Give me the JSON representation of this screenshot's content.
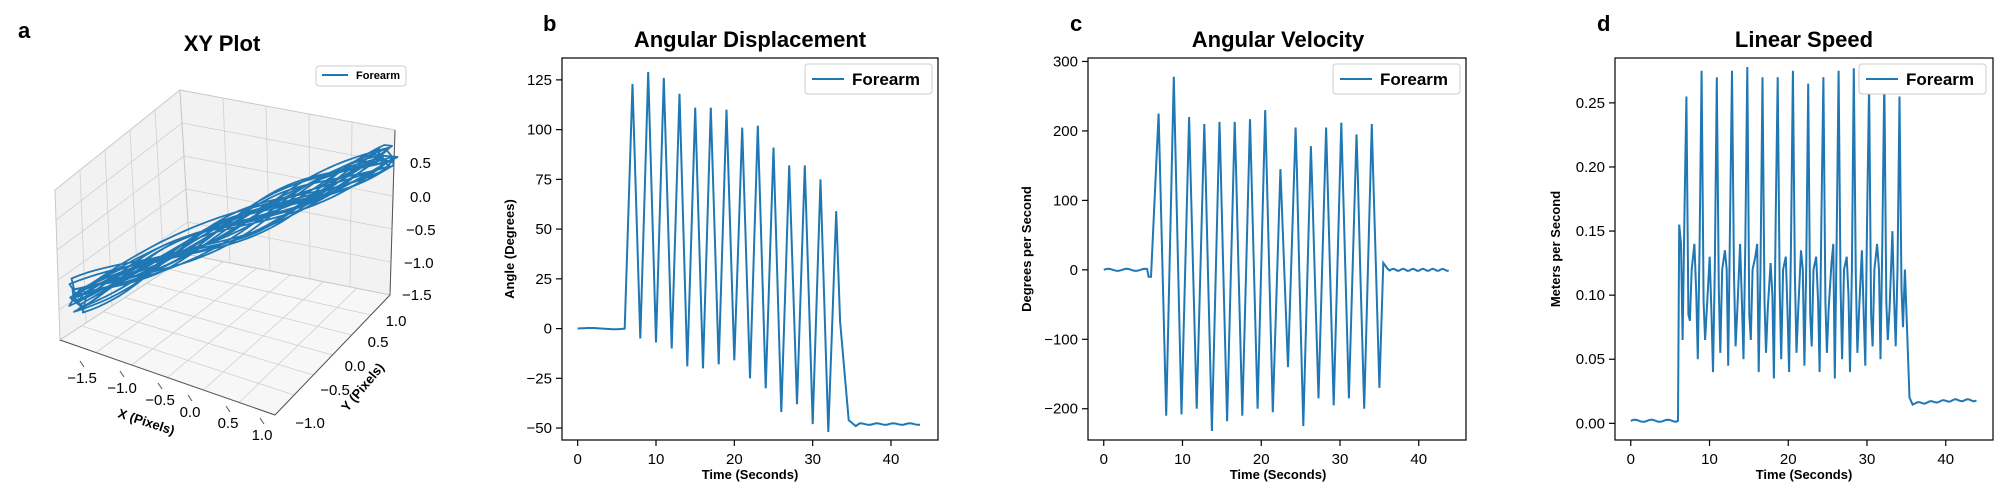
{
  "panels": {
    "a": {
      "letter": "a",
      "title": "XY Plot"
    },
    "b": {
      "letter": "b"
    },
    "c": {
      "letter": "c"
    },
    "d": {
      "letter": "d"
    }
  },
  "colors": {
    "series": "#1f77b4",
    "pane": "#f2f2f2",
    "grid": "#d0d0d0"
  },
  "chart_data": [
    {
      "type": "line3d",
      "title": "XY Plot",
      "xlabel": "X (Pixels)",
      "ylabel": "Y (Pixels)",
      "xticks": [
        "−1.5",
        "−1.0",
        "−0.5",
        "0.0",
        "0.5",
        "1.0"
      ],
      "yticks": [
        "−1.0",
        "−0.5",
        "0.0",
        "0.5",
        "1.0"
      ],
      "zticks": [
        "0.5",
        "0.0",
        "−0.5",
        "−1.0",
        "−1.5"
      ],
      "legend": "Forearm",
      "legend_position": "top-right",
      "series_name": "Forearm"
    },
    {
      "type": "line",
      "title": "Angular Displacement",
      "xlabel": "Time (Seconds)",
      "ylabel": "Angle (Degrees)",
      "xlim": [
        -2,
        46
      ],
      "ylim": [
        -56,
        136
      ],
      "xticks": [
        0,
        10,
        20,
        30,
        40
      ],
      "yticks": [
        -50,
        -25,
        0,
        25,
        50,
        75,
        100,
        125
      ],
      "legend": "Forearm",
      "legend_position": "top-right",
      "series_name": "Forearm",
      "x_range": [
        0,
        44
      ],
      "active_interval": [
        6,
        34
      ],
      "peaks": [
        123,
        129,
        126,
        118,
        111,
        111,
        110,
        101,
        102,
        91,
        82,
        82,
        75,
        59
      ],
      "troughs": [
        -5,
        -7,
        -10,
        -19,
        -20,
        -18,
        -16,
        -25,
        -30,
        -42,
        -38,
        -48,
        -52
      ]
    },
    {
      "type": "line",
      "title": "Angular Velocity",
      "xlabel": "Time (Seconds)",
      "ylabel": "Degrees per Second",
      "xlim": [
        -2,
        46
      ],
      "ylim": [
        -245,
        305
      ],
      "xticks": [
        0,
        10,
        20,
        30,
        40
      ],
      "yticks": [
        -200,
        -100,
        0,
        100,
        200,
        300
      ],
      "legend": "Forearm",
      "legend_position": "top-right",
      "series_name": "Forearm",
      "x_range": [
        0,
        44
      ],
      "active_interval": [
        6,
        35
      ],
      "peaks": [
        225,
        278,
        220,
        210,
        213,
        213,
        217,
        230,
        145,
        205,
        178,
        205,
        212,
        195,
        210
      ],
      "troughs": [
        -210,
        -208,
        -200,
        -232,
        -218,
        -210,
        -200,
        -205,
        -140,
        -225,
        -185,
        -195,
        -185,
        -200,
        -170
      ]
    },
    {
      "type": "line",
      "title": "Linear Speed",
      "xlabel": "Time (Seconds)",
      "ylabel": "Meters per Second",
      "xlim": [
        -2,
        46
      ],
      "ylim": [
        -0.013,
        0.285
      ],
      "xticks": [
        0,
        10,
        20,
        30,
        40
      ],
      "yticks": [
        0.0,
        0.05,
        0.1,
        0.15,
        0.2,
        0.25
      ],
      "legend": "Forearm",
      "legend_position": "top-right",
      "series_name": "Forearm",
      "x_range": [
        0,
        44
      ],
      "active_interval": [
        6,
        35
      ],
      "baseline_before": 0.002,
      "baseline_after": 0.018,
      "peaks": [
        0.255,
        0.275,
        0.27,
        0.275,
        0.278,
        0.27,
        0.27,
        0.275,
        0.265,
        0.27,
        0.275,
        0.277,
        0.265,
        0.27,
        0.255
      ],
      "troughs": [
        0.065,
        0.05,
        0.04,
        0.045,
        0.05,
        0.04,
        0.035,
        0.04,
        0.045,
        0.04,
        0.035,
        0.04,
        0.045,
        0.05,
        0.06
      ]
    }
  ]
}
